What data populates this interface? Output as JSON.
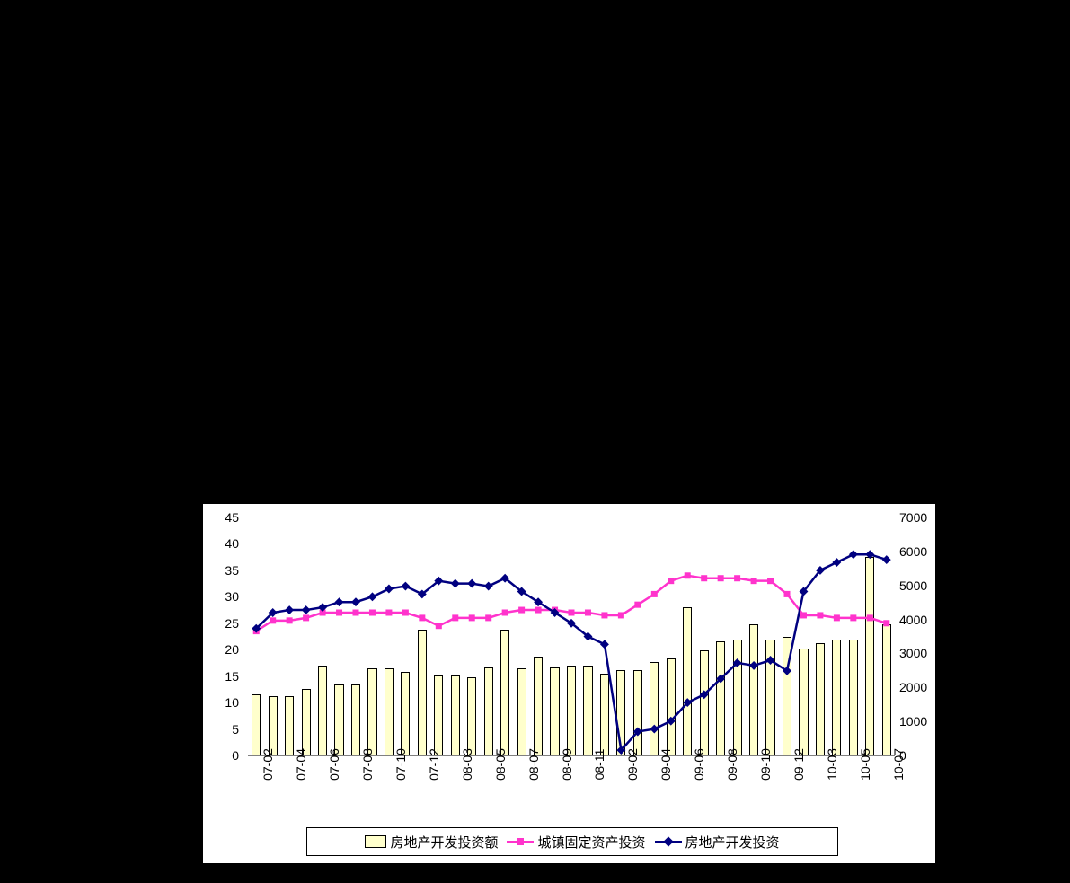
{
  "chart": {
    "type": "combo-bar-line",
    "background_color": "#ffffff",
    "page_background": "#000000",
    "y_left": {
      "min": 0,
      "max": 45,
      "ticks": [
        0,
        5,
        10,
        15,
        20,
        25,
        30,
        35,
        40,
        45
      ],
      "label_fontsize": 14,
      "label_color": "#000000"
    },
    "y_right": {
      "min": 0,
      "max": 7000,
      "ticks": [
        0,
        1000,
        2000,
        3000,
        4000,
        5000,
        6000,
        7000
      ],
      "label_fontsize": 14,
      "label_color": "#000000"
    },
    "x": {
      "categories": [
        "07-02",
        "07-03",
        "07-04",
        "07-05",
        "07-06",
        "07-07",
        "07-08",
        "07-09",
        "07-10",
        "07-11",
        "07-12",
        "08-02",
        "08-03",
        "08-04",
        "08-05",
        "08-06",
        "08-07",
        "08-08",
        "08-09",
        "08-10",
        "08-11",
        "08-12",
        "09-02",
        "09-03",
        "09-04",
        "09-05",
        "09-06",
        "09-07",
        "09-08",
        "09-09",
        "09-10",
        "09-11",
        "09-12",
        "10-02",
        "10-03",
        "10-04",
        "10-05",
        "10-06",
        "10-07"
      ],
      "shown_labels": [
        "07-02",
        "07-04",
        "07-06",
        "07-08",
        "07-10",
        "07-12",
        "08-03",
        "08-05",
        "08-07",
        "08-09",
        "08-11",
        "09-02",
        "09-04",
        "09-06",
        "09-08",
        "09-10",
        "09-12",
        "10-03",
        "10-05",
        "10-07"
      ],
      "label_rotation_deg": -90,
      "label_fontsize": 14,
      "label_color": "#000000"
    },
    "series": {
      "bars": {
        "name": "房地产开发投资额",
        "axis": "right",
        "color": "#ffffcc",
        "border_color": "#000000",
        "bar_width_ratio": 0.55,
        "values": [
          1800,
          1750,
          1750,
          1950,
          2650,
          2100,
          2100,
          2550,
          2550,
          2450,
          3700,
          2350,
          2350,
          2300,
          2600,
          3700,
          2550,
          2900,
          2600,
          2650,
          2650,
          2400,
          2500,
          2500,
          2750,
          2850,
          4350,
          3100,
          3350,
          3400,
          3850,
          3400,
          3500,
          3150,
          3300,
          3400,
          3400,
          5850,
          3850
        ]
      },
      "line_pink": {
        "name": "城镇固定资产投资",
        "axis": "left",
        "color": "#ff33cc",
        "line_width": 2.5,
        "marker": "square",
        "marker_size": 7,
        "values": [
          23.5,
          25.5,
          25.5,
          26,
          27,
          27,
          27,
          27,
          27,
          27,
          26,
          24.5,
          26,
          26,
          26,
          27,
          27.5,
          27.5,
          27.5,
          27,
          27,
          26.5,
          26.5,
          28.5,
          30.5,
          33,
          34,
          33.5,
          33.5,
          33.5,
          33,
          33,
          30.5,
          26.5,
          26.5,
          26,
          26,
          26,
          25
        ]
      },
      "line_navy": {
        "name": "房地产开发投资",
        "axis": "left",
        "color": "#000080",
        "line_width": 2.5,
        "marker": "diamond",
        "marker_size": 7,
        "values": [
          24,
          27,
          27.5,
          27.5,
          28,
          29,
          29,
          30,
          31.5,
          32,
          30.5,
          33,
          32.5,
          32.5,
          32,
          33.5,
          31,
          29,
          27,
          25,
          22.5,
          21,
          1,
          4.5,
          5,
          6.5,
          10,
          11.5,
          14.5,
          17.5,
          17,
          18,
          16,
          31,
          35,
          36.5,
          38,
          38,
          37
        ]
      }
    },
    "legend": {
      "items": [
        {
          "key": "bars",
          "label": "房地产开发投资额"
        },
        {
          "key": "line_pink",
          "label": "城镇固定资产投资"
        },
        {
          "key": "line_navy",
          "label": "房地产开发投资"
        }
      ],
      "border_color": "#000000",
      "fontsize": 15
    }
  }
}
